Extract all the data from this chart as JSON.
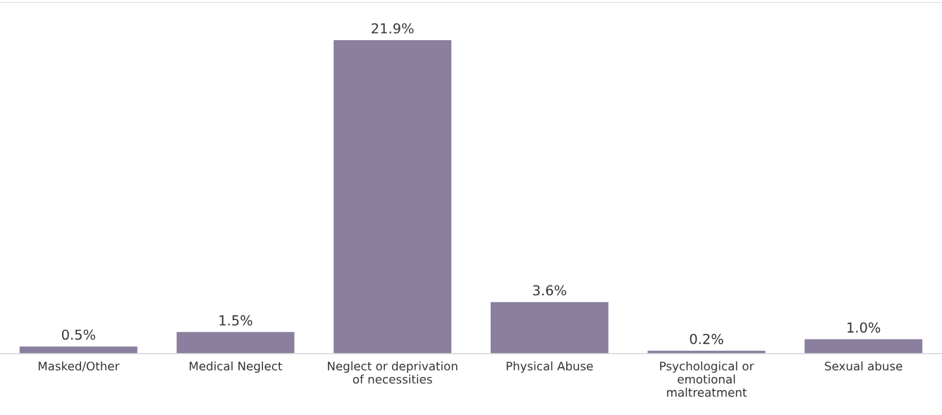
{
  "chart_data": {
    "type": "bar",
    "categories": [
      "Masked/Other",
      "Medical Neglect",
      "Neglect or deprivation\nof necessities",
      "Physical Abuse",
      "Psychological or\nemotional\nmaltreatment",
      "Sexual abuse"
    ],
    "values": [
      0.5,
      1.5,
      21.9,
      3.6,
      0.2,
      1.0
    ],
    "value_labels": [
      "0.5%",
      "1.5%",
      "21.9%",
      "3.6%",
      "0.2%",
      "1.0%"
    ],
    "color": "#8a7f9e",
    "grid": false,
    "legend": false
  }
}
